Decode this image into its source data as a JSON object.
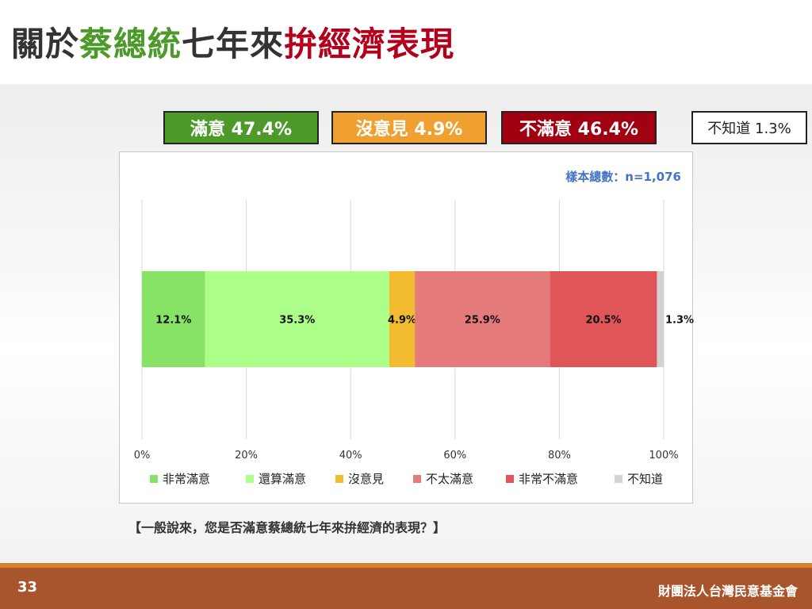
{
  "slide": {
    "title_part1": "關於",
    "title_part2": "蔡總統",
    "title_part3": "七年來",
    "title_part4": "拚經濟表現",
    "page_number": "33",
    "organization": "財團法人台灣民意基金會",
    "question": "【一般說來，您是否滿意蔡總統七年來拚經濟的表現？】"
  },
  "summary": [
    {
      "label": "滿意 47.4%",
      "color": "#4d9a2a"
    },
    {
      "label": "沒意見 4.9%",
      "color": "#f0a030"
    },
    {
      "label": "不滿意 46.4%",
      "color": "#a00010"
    },
    {
      "label": "不知道 1.3%",
      "color": "#ffffff"
    }
  ],
  "chart_data": {
    "type": "bar",
    "orientation": "horizontal-stacked",
    "annotation": "樣本總數：n=1,076",
    "xlim": [
      0,
      100
    ],
    "x_ticks": [
      "0%",
      "20%",
      "40%",
      "60%",
      "80%",
      "100%"
    ],
    "grid": true,
    "legend_position": "bottom",
    "series": [
      {
        "name": "非常滿意",
        "value": 12.1,
        "label": "12.1%",
        "color": "#87e266"
      },
      {
        "name": "還算滿意",
        "value": 35.3,
        "label": "35.3%",
        "color": "#acff88"
      },
      {
        "name": "沒意見",
        "value": 4.9,
        "label": "4.9%",
        "color": "#f2bb30"
      },
      {
        "name": "不太滿意",
        "value": 25.9,
        "label": "25.9%",
        "color": "#e57a7a"
      },
      {
        "name": "非常不滿意",
        "value": 20.5,
        "label": "20.5%",
        "color": "#e05558"
      },
      {
        "name": "不知道",
        "value": 1.3,
        "label": "1.3%",
        "color": "#d3d3d3"
      }
    ]
  }
}
